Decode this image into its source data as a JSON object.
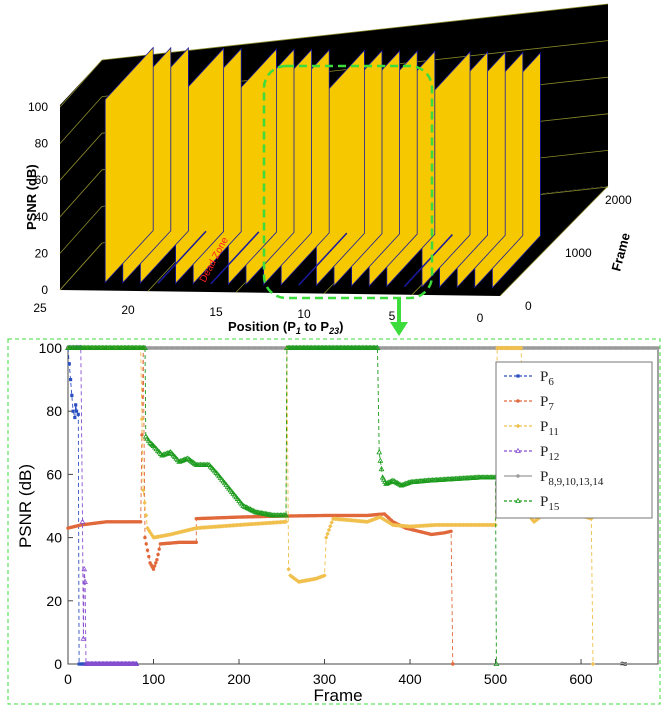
{
  "chart_data": [
    {
      "type": "bar",
      "view": "3d-waterfall",
      "zlabel": "PSNR (dB)",
      "xlabel": "Position (P",
      "xlabel_sub1": "1",
      "xlabel_mid": " to P",
      "xlabel_sub2": "23",
      "xlabel_end": ")",
      "ylabel": "Frame",
      "zticks": [
        "0",
        "20",
        "40",
        "60",
        "80",
        "100"
      ],
      "xticks": [
        "25",
        "20",
        "15",
        "10",
        "5",
        "0"
      ],
      "yticks": [
        "0",
        "1000",
        "2000"
      ],
      "zlim": [
        0,
        100
      ],
      "xlim": [
        25,
        0
      ],
      "ylim": [
        0,
        2000
      ],
      "annotation": "Dead Zone",
      "highlight_positions": [
        8,
        9,
        10,
        11,
        12,
        13,
        14,
        15
      ],
      "positions": [
        {
          "pos": 1,
          "psnr": 100
        },
        {
          "pos": 2,
          "psnr": 100
        },
        {
          "pos": 3,
          "psnr": 100
        },
        {
          "pos": 4,
          "psnr": 100
        },
        {
          "pos": 5,
          "psnr": 100
        },
        {
          "pos": 6,
          "psnr": 0
        },
        {
          "pos": 7,
          "psnr": 100
        },
        {
          "pos": 8,
          "psnr": 100
        },
        {
          "pos": 9,
          "psnr": 100
        },
        {
          "pos": 10,
          "psnr": 100
        },
        {
          "pos": 11,
          "psnr": 100
        },
        {
          "pos": 12,
          "psnr": 0
        },
        {
          "pos": 13,
          "psnr": 100
        },
        {
          "pos": 14,
          "psnr": 100
        },
        {
          "pos": 15,
          "psnr": 100
        },
        {
          "pos": 16,
          "psnr": 100
        },
        {
          "pos": 17,
          "psnr": 0
        },
        {
          "pos": 18,
          "psnr": 100
        },
        {
          "pos": 19,
          "psnr": 100
        },
        {
          "pos": 20,
          "psnr": 0
        },
        {
          "pos": 21,
          "psnr": 100
        },
        {
          "pos": 22,
          "psnr": 100
        },
        {
          "pos": 23,
          "psnr": 100
        }
      ],
      "colors": {
        "bg": "#000000",
        "plane": "#f5c800",
        "edge": "#1a1aa0",
        "grid": "#8a8a2a",
        "highlight": "#3cdc3c"
      }
    },
    {
      "type": "line",
      "xlabel": "Frame",
      "ylabel": "PSNR (dB)",
      "xlim": [
        0,
        690
      ],
      "ylim": [
        0,
        100
      ],
      "xticks": [
        "0",
        "100",
        "200",
        "300",
        "400",
        "500",
        "600"
      ],
      "yticks": [
        "0",
        "20",
        "40",
        "60",
        "80",
        "100"
      ],
      "break_symbol": "≈",
      "legend_position": "top-right",
      "series": [
        {
          "name": "P",
          "sub": "6",
          "color": "#2b4fc0",
          "marker": "square",
          "dash": "4,3",
          "points": [
            [
              0,
              100
            ],
            [
              6,
              80
            ],
            [
              8,
              78
            ],
            [
              9,
              82
            ],
            [
              10,
              80
            ],
            [
              12,
              79
            ],
            [
              13,
              0
            ],
            [
              80,
              0
            ]
          ]
        },
        {
          "name": "P",
          "sub": "7",
          "color": "#e0683a",
          "marker": "circle",
          "dash": "4,3",
          "points": [
            [
              0,
              43
            ],
            [
              15,
              44
            ],
            [
              30,
              44.5
            ],
            [
              45,
              45
            ],
            [
              60,
              45
            ],
            [
              70,
              45
            ],
            [
              85,
              45
            ],
            [
              88,
              100
            ],
            [
              90,
              40
            ],
            [
              93,
              36
            ],
            [
              96,
              32
            ],
            [
              100,
              30
            ],
            [
              104,
              33
            ],
            [
              108,
              38
            ],
            [
              130,
              38.5
            ],
            [
              150,
              38.5
            ],
            [
              150,
              46
            ],
            [
              200,
              46.5
            ],
            [
              250,
              46.8
            ],
            [
              300,
              47
            ],
            [
              350,
              47
            ],
            [
              370,
              47.5
            ],
            [
              380,
              45
            ],
            [
              395,
              43
            ],
            [
              410,
              42
            ],
            [
              425,
              41
            ],
            [
              440,
              41.5
            ],
            [
              448,
              42
            ],
            [
              450,
              0
            ]
          ]
        },
        {
          "name": "P",
          "sub": "11",
          "color": "#f0bf4c",
          "marker": "diamond",
          "dash": "4,3",
          "points": [
            [
              0,
              100
            ],
            [
              85,
              100
            ],
            [
              88,
              55
            ],
            [
              93,
              43
            ],
            [
              100,
              40
            ],
            [
              120,
              41
            ],
            [
              150,
              43
            ],
            [
              200,
              44
            ],
            [
              255,
              45
            ],
            [
              256,
              100
            ],
            [
              258,
              30
            ],
            [
              260,
              28
            ],
            [
              270,
              26
            ],
            [
              290,
              27
            ],
            [
              300,
              28
            ],
            [
              302,
              40
            ],
            [
              310,
              46
            ],
            [
              330,
              45.5
            ],
            [
              350,
              45
            ],
            [
              365,
              46.5
            ],
            [
              380,
              44
            ],
            [
              400,
              43.5
            ],
            [
              430,
              44
            ],
            [
              450,
              44
            ],
            [
              480,
              44
            ],
            [
              500,
              44
            ],
            [
              502,
              100
            ],
            [
              530,
              100
            ],
            [
              532,
              56
            ],
            [
              536,
              48
            ],
            [
              545,
              45
            ],
            [
              560,
              48
            ],
            [
              580,
              48
            ],
            [
              600,
              47
            ],
            [
              612,
              46
            ],
            [
              614,
              0
            ]
          ]
        },
        {
          "name": "P",
          "sub": "12",
          "color": "#8a4fd0",
          "marker": "triangle",
          "dash": "4,3",
          "points": [
            [
              0,
              100
            ],
            [
              15,
              100
            ],
            [
              17,
              45
            ],
            [
              18,
              8
            ],
            [
              19,
              30
            ],
            [
              20,
              26
            ],
            [
              21,
              0
            ],
            [
              80,
              0
            ]
          ]
        },
        {
          "name": "P",
          "sub": "8,9,10,13,14",
          "color": "#9a9a9a",
          "marker": "circle",
          "dash": "none",
          "points": [
            [
              0,
              100
            ],
            [
              690,
              100
            ]
          ]
        },
        {
          "name": "P",
          "sub": "15",
          "color": "#1a9a1a",
          "marker": "triangle",
          "dash": "4,3",
          "points": [
            [
              0,
              100
            ],
            [
              90,
              100
            ],
            [
              91,
              72
            ],
            [
              96,
              70
            ],
            [
              100,
              69
            ],
            [
              110,
              66
            ],
            [
              120,
              67
            ],
            [
              130,
              64
            ],
            [
              140,
              65
            ],
            [
              150,
              63
            ],
            [
              165,
              63
            ],
            [
              175,
              60
            ],
            [
              190,
              55
            ],
            [
              205,
              50
            ],
            [
              220,
              48
            ],
            [
              240,
              47
            ],
            [
              255,
              47
            ],
            [
              256,
              100
            ],
            [
              362,
              100
            ],
            [
              364,
              67
            ],
            [
              368,
              59
            ],
            [
              372,
              57
            ],
            [
              380,
              58
            ],
            [
              390,
              56.5
            ],
            [
              400,
              57.5
            ],
            [
              420,
              58
            ],
            [
              450,
              58.5
            ],
            [
              480,
              59
            ],
            [
              500,
              59
            ],
            [
              501,
              0
            ]
          ]
        }
      ]
    }
  ]
}
